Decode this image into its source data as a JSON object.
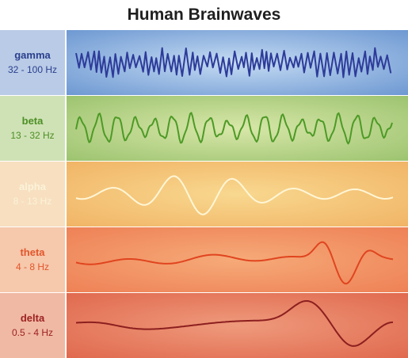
{
  "title": "Human Brainwaves",
  "waves": [
    {
      "name": "gamma",
      "frequency": "32 - 100 Hz",
      "label_bg": "#b9cbe6",
      "label_color": "#2b3f8e",
      "wave_bg": "#c6dcf3",
      "wave_bg_edge": "#6d98d2",
      "line_color": "#2d3b9a"
    },
    {
      "name": "beta",
      "frequency": "13 - 32 Hz",
      "label_bg": "#cfe2b6",
      "label_color": "#4d8f24",
      "wave_bg": "#d8e7a9",
      "wave_bg_edge": "#9cc36f",
      "line_color": "#4d9a26"
    },
    {
      "name": "alpha",
      "frequency": "8 - 13 Hz",
      "label_bg": "#f7dfc0",
      "label_color": "#fbf3d9",
      "wave_bg": "#f8d88f",
      "wave_bg_edge": "#f1b466",
      "line_color": "#fff6d6"
    },
    {
      "name": "theta",
      "frequency": "4 - 8 Hz",
      "label_bg": "#f6c8ac",
      "label_color": "#e2562b",
      "wave_bg": "#f6aa78",
      "wave_bg_edge": "#ee8156",
      "line_color": "#e0451f"
    },
    {
      "name": "delta",
      "frequency": "0.5 - 4 Hz",
      "label_bg": "#f0b9a3",
      "label_color": "#9c2222",
      "wave_bg": "#ef9a7c",
      "wave_bg_edge": "#e0694e",
      "line_color": "#8c1f1f"
    }
  ]
}
